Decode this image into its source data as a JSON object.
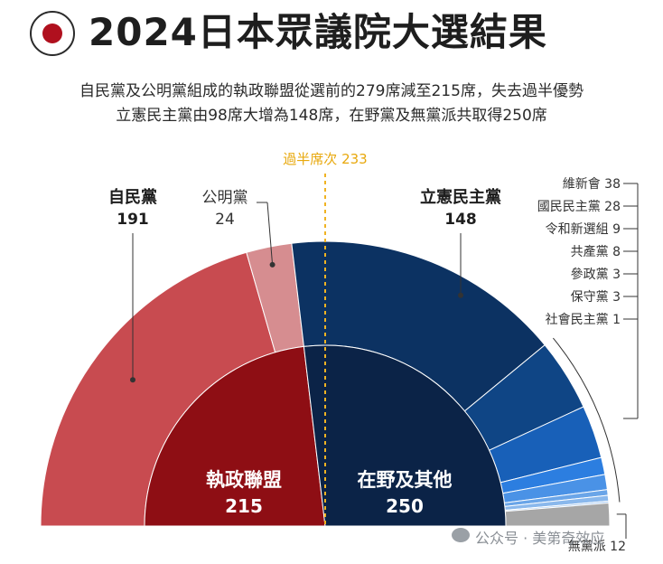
{
  "header": {
    "title": "2024日本眾議院大選結果",
    "subtitle_1": "自民黨及公明黨組成的執政聯盟從選前的279席減至215席，失去過半優勢",
    "subtitle_2": "立憲民主黨由98席大增為148席，在野黨及無黨派共取得250席"
  },
  "watermark": "公众号 · 美第奇效应",
  "chart_data": {
    "type": "pie",
    "subtype": "nested-semicircle",
    "total_seats": 465,
    "majority_line": {
      "label": "過半席次 233",
      "value": 233
    },
    "outer_ring": [
      {
        "name": "自民黨",
        "value": 191,
        "color": "#c84b50"
      },
      {
        "name": "公明黨",
        "value": 24,
        "color": "#d68d90"
      },
      {
        "name": "立憲民主黨",
        "value": 148,
        "color": "#0c3262"
      },
      {
        "name": "維新會",
        "value": 38,
        "color": "#0f4585"
      },
      {
        "name": "國民民主黨",
        "value": 28,
        "color": "#1860b8"
      },
      {
        "name": "令和新選組",
        "value": 9,
        "color": "#2c7ee0"
      },
      {
        "name": "共產黨",
        "value": 8,
        "color": "#4a92e6"
      },
      {
        "name": "參政黨",
        "value": 3,
        "color": "#6aa5e8"
      },
      {
        "name": "保守黨",
        "value": 3,
        "color": "#8ab8ec"
      },
      {
        "name": "社會民主黨",
        "value": 1,
        "color": "#a7c9f0"
      },
      {
        "name": "無黨派",
        "value": 12,
        "color": "#a6a6a6"
      }
    ],
    "inner_ring": [
      {
        "name": "執政聯盟",
        "value": 215,
        "color": "#8e0e14"
      },
      {
        "name": "在野及其他",
        "value": 250,
        "color": "#0b2347"
      }
    ],
    "labels": {
      "ldp": {
        "name": "自民黨",
        "value": "191"
      },
      "komeito": {
        "name": "公明黨",
        "value": "24"
      },
      "cdp": {
        "name": "立憲民主黨",
        "value": "148"
      },
      "others": [
        "維新會 38",
        "國民民主黨 28",
        "令和新選組 9",
        "共產黨 8",
        "參政黨 3",
        "保守黨 3",
        "社會民主黨 1"
      ],
      "independents": "無黨派 12",
      "coalition": {
        "name": "執政聯盟",
        "value": "215"
      },
      "opposition": {
        "name": "在野及其他",
        "value": "250"
      }
    }
  }
}
